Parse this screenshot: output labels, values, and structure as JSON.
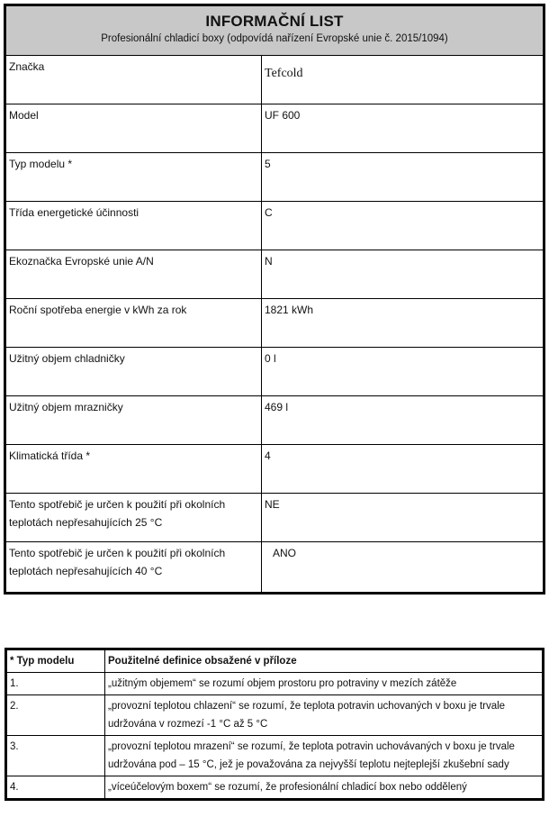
{
  "info_sheet": {
    "title": "INFORMAČNÍ LIST",
    "subtitle": "Profesionální chladicí boxy (odpovídá nařízení Evropské unie č. 2015/1094)",
    "rows": [
      {
        "label": "Značka",
        "value": "Tefcold"
      },
      {
        "label": "Model",
        "value": "UF 600"
      },
      {
        "label": "Typ modelu *",
        "value": "5"
      },
      {
        "label": "Třída energetické účinnosti",
        "value": "C"
      },
      {
        "label": "Ekoznačka Evropské unie A/N",
        "value": "N"
      },
      {
        "label": "Roční spotřeba energie v kWh za rok",
        "value": "1821 kWh"
      },
      {
        "label": "Užitný objem chladničky",
        "value": "0 l"
      },
      {
        "label": "Užitný objem mrazničky",
        "value": "469 l"
      },
      {
        "label": "Klimatická třída *",
        "value": "4"
      },
      {
        "label": "Tento spotřebič je určen k použití při okolních teplotách nepřesahujících 25 °C",
        "value": "NE"
      },
      {
        "label": "Tento spotřebič je určen k použití při okolních teplotách nepřesahujících 40 °C",
        "value": "ANO"
      }
    ]
  },
  "definitions": {
    "header": {
      "col1": "* Typ modelu",
      "col2": "Použitelné definice obsažené v příloze"
    },
    "rows": [
      {
        "num": "1.",
        "text": "„užitným objemem“ se rozumí objem prostoru pro potraviny v mezích zátěže"
      },
      {
        "num": "2.",
        "text": "„provozní teplotou chlazení“ se rozumí, že teplota potravin uchovaných v boxu je trvale udržována v rozmezí  -1 °C až 5 °C"
      },
      {
        "num": "3.",
        "text": "„provozní teplotou mrazení“ se rozumí, že teplota potravin uchovávaných v boxu je trvale udržována pod – 15 °C, jež je považována za nejvyšší teplotu nejteplejší zkušební sady"
      },
      {
        "num": "4.",
        "text": "„víceúčelovým boxem“ se rozumí, že profesionální chladicí box nebo oddělený"
      }
    ]
  }
}
